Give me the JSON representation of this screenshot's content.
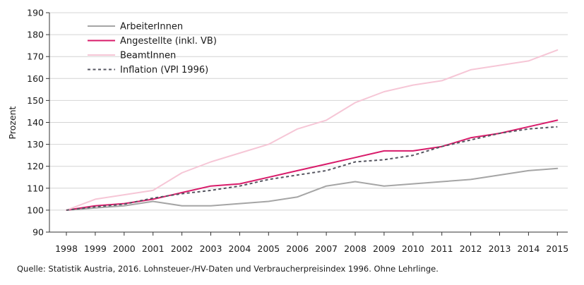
{
  "chart_data": {
    "type": "line",
    "title": "",
    "xlabel": "",
    "ylabel": "Prozent",
    "ylim": [
      90,
      190
    ],
    "yticks": [
      90,
      100,
      110,
      120,
      130,
      140,
      150,
      160,
      170,
      180,
      190
    ],
    "categories": [
      "1998",
      "1999",
      "2000",
      "2001",
      "2002",
      "2003",
      "2004",
      "2005",
      "2006",
      "2007",
      "2008",
      "2009",
      "2010",
      "2011",
      "2012",
      "2013",
      "2014",
      "2015"
    ],
    "legend_position": "top-left",
    "series": [
      {
        "name": "ArbeiterInnen",
        "color": "#a5a5a5",
        "style": "solid",
        "values": [
          100,
          101,
          102,
          104,
          102,
          102,
          103,
          104,
          106,
          111,
          113,
          111,
          112,
          113,
          114,
          116,
          118,
          119
        ]
      },
      {
        "name": "Angestellte (inkl. VB)",
        "color": "#d81b6a",
        "style": "solid",
        "values": [
          100,
          102,
          103,
          105,
          108,
          111,
          112,
          115,
          118,
          121,
          124,
          127,
          127,
          129,
          133,
          135,
          138,
          141
        ]
      },
      {
        "name": "BeamtInnen",
        "color": "#f6c6d6",
        "style": "solid",
        "values": [
          100,
          105,
          107,
          109,
          117,
          122,
          126,
          130,
          137,
          141,
          149,
          154,
          157,
          159,
          164,
          166,
          168,
          173
        ]
      },
      {
        "name": "Inflation (VPI 1996)",
        "color": "#555560",
        "style": "dashed",
        "values": [
          100,
          101.5,
          102.7,
          105.5,
          107.5,
          109,
          111,
          114,
          116,
          118,
          122,
          123,
          125,
          129,
          132,
          135,
          137,
          138
        ]
      }
    ]
  },
  "source_note": "Quelle: Statistik Austria, 2016. Lohnsteuer-/HV-Daten und Verbraucherpreisindex 1996. Ohne Lehrlinge."
}
